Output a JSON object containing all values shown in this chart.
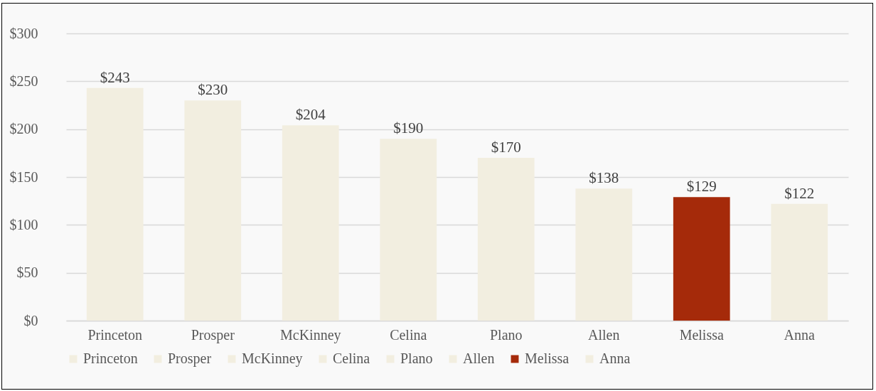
{
  "chart_data": {
    "type": "bar",
    "categories": [
      "Princeton",
      "Prosper",
      "McKinney",
      "Celina",
      "Plano",
      "Allen",
      "Melissa",
      "Anna"
    ],
    "series": [
      {
        "name": "Princeton",
        "color": "#f2eee0",
        "values": [
          243,
          null,
          null,
          null,
          null,
          null,
          null,
          null
        ],
        "value_labels": [
          "$243",
          null,
          null,
          null,
          null,
          null,
          null,
          null
        ]
      },
      {
        "name": "Prosper",
        "color": "#f2eee0",
        "values": [
          null,
          230,
          null,
          null,
          null,
          null,
          null,
          null
        ],
        "value_labels": [
          null,
          "$230",
          null,
          null,
          null,
          null,
          null,
          null
        ]
      },
      {
        "name": "McKinney",
        "color": "#f2eee0",
        "values": [
          null,
          null,
          204,
          null,
          null,
          null,
          null,
          null
        ],
        "value_labels": [
          null,
          null,
          "$204",
          null,
          null,
          null,
          null,
          null
        ]
      },
      {
        "name": "Celina",
        "color": "#f2eee0",
        "values": [
          null,
          null,
          null,
          190,
          null,
          null,
          null,
          null
        ],
        "value_labels": [
          null,
          null,
          null,
          "$190",
          null,
          null,
          null,
          null
        ]
      },
      {
        "name": "Plano",
        "color": "#f2eee0",
        "values": [
          null,
          null,
          null,
          null,
          170,
          null,
          null,
          null
        ],
        "value_labels": [
          null,
          null,
          null,
          null,
          "$170",
          null,
          null,
          null
        ]
      },
      {
        "name": "Allen",
        "color": "#f2eee0",
        "values": [
          null,
          null,
          null,
          null,
          null,
          138,
          null,
          null
        ],
        "value_labels": [
          null,
          null,
          null,
          null,
          null,
          "$138",
          null,
          null
        ]
      },
      {
        "name": "Melissa",
        "color": "#a52a0a",
        "values": [
          null,
          null,
          null,
          null,
          null,
          null,
          129,
          null
        ],
        "value_labels": [
          null,
          null,
          null,
          null,
          null,
          null,
          "$129",
          null
        ]
      },
      {
        "name": "Anna",
        "color": "#f2eee0",
        "values": [
          null,
          null,
          null,
          null,
          null,
          null,
          null,
          122
        ],
        "value_labels": [
          null,
          null,
          null,
          null,
          null,
          null,
          null,
          "$122"
        ]
      }
    ],
    "ylim": [
      0,
      300
    ],
    "yticks": [
      {
        "value": 0,
        "label": "$0"
      },
      {
        "value": 50,
        "label": "$50"
      },
      {
        "value": 100,
        "label": "$100"
      },
      {
        "value": 150,
        "label": "$150"
      },
      {
        "value": 200,
        "label": "$200"
      },
      {
        "value": 250,
        "label": "$250"
      },
      {
        "value": 300,
        "label": "$300"
      }
    ],
    "grid": "y",
    "legend": "bottom"
  }
}
